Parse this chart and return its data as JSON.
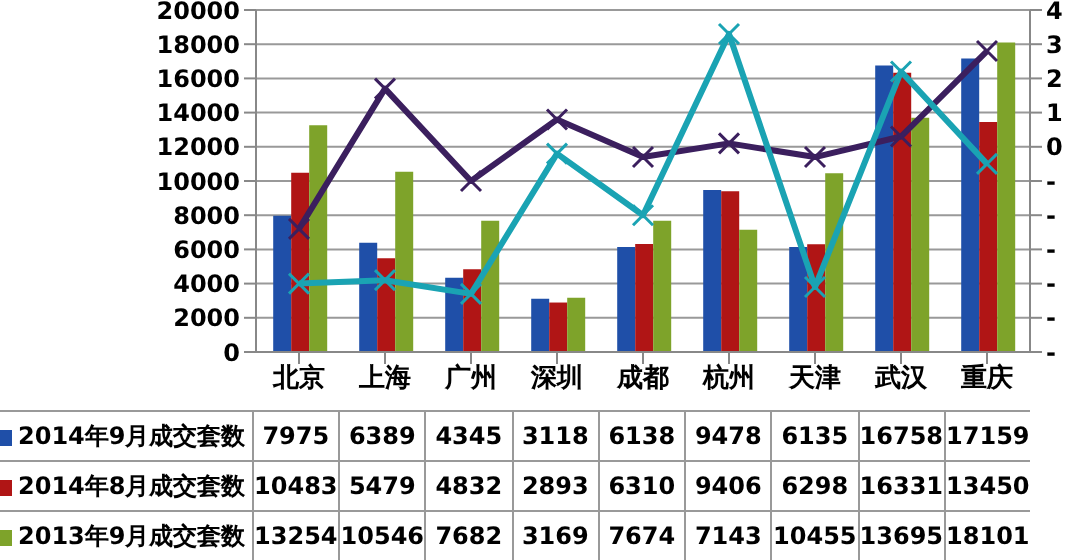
{
  "chart_data": {
    "type": "bar",
    "categories": [
      "北京",
      "上海",
      "广州",
      "深圳",
      "成都",
      "杭州",
      "天津",
      "武汉",
      "重庆"
    ],
    "series": [
      {
        "name": "2014年9月成交套数",
        "color": "#1f4fa8",
        "values": [
          7975,
          6389,
          4345,
          3118,
          6138,
          9478,
          6135,
          16758,
          17159
        ],
        "value_labels": [
          "7975",
          "6389",
          "4345",
          "3118",
          "6138",
          "9478",
          "6135",
          "16758",
          "17159"
        ]
      },
      {
        "name": "2014年8月成交套数",
        "color": "#b01515",
        "values": [
          10483,
          5479,
          4832,
          2893,
          6310,
          9406,
          6298,
          16331,
          13450
        ],
        "value_labels": [
          "10483",
          "5479",
          "4832",
          "2893",
          "6310",
          "9406",
          "6298",
          "16331",
          "13450"
        ]
      },
      {
        "name": "2013年9月成交套数",
        "color": "#7ea32a",
        "values": [
          13254,
          10546,
          7682,
          3169,
          7674,
          7143,
          10455,
          13695,
          18101
        ],
        "value_labels": [
          "13254",
          "10546",
          "7682",
          "3169",
          "7674",
          "7143",
          "10455",
          "13695",
          "18101"
        ]
      },
      {
        "type": "line",
        "axis": "y2",
        "color": "#3b1f5e",
        "marker": "cross",
        "values": [
          -2.4,
          1.7,
          -1.0,
          0.8,
          -0.3,
          0.1,
          -0.3,
          0.3,
          2.8
        ]
      },
      {
        "type": "line",
        "axis": "y2",
        "color": "#1aa3b3",
        "marker": "cross",
        "values": [
          -4.0,
          -3.9,
          -4.3,
          -0.2,
          -2.0,
          3.3,
          -4.1,
          2.2,
          -0.5
        ]
      }
    ],
    "ylim": [
      0,
      20000
    ],
    "yticks": [
      0,
      2000,
      4000,
      6000,
      8000,
      10000,
      12000,
      14000,
      16000,
      18000,
      20000
    ],
    "y2lim": [
      -6,
      4
    ],
    "y2ticks": [
      4,
      3,
      2,
      1,
      0,
      {
        "value": -1,
        "label": "-"
      },
      {
        "value": -2,
        "label": "-"
      },
      {
        "value": -3,
        "label": "-"
      },
      {
        "value": -4,
        "label": "-"
      },
      {
        "value": -5,
        "label": "-"
      },
      {
        "value": -6,
        "label": "-"
      }
    ],
    "grid": "y",
    "legend": "bottom",
    "line_style": "solid"
  }
}
